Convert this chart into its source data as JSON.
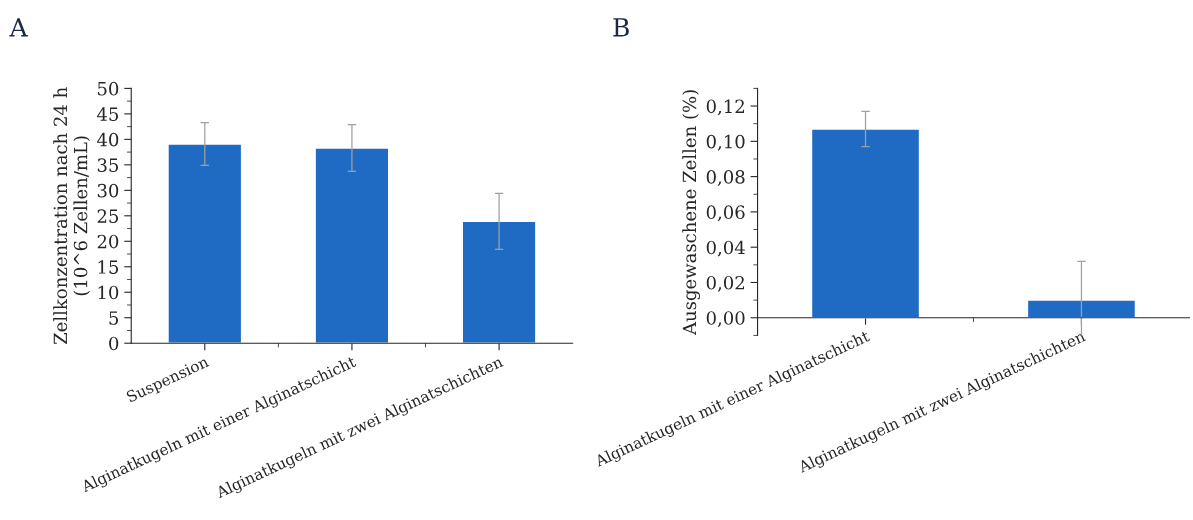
{
  "chart_data": [
    {
      "type": "bar",
      "annotations": [
        "A"
      ],
      "ylabel": "Zellkonzentration nach 24 h\n(10^6 Zellen/mL)",
      "categories": [
        "Suspension",
        "Alginatkugeln mit einer Alginatschicht",
        "Alginatkugeln mit zwei Alginatschichten"
      ],
      "values": [
        39.1,
        38.3,
        23.9
      ],
      "errors": [
        4.2,
        4.6,
        5.5
      ],
      "color": "#1f6bc4",
      "ylim": [
        0,
        50
      ],
      "yticks": [
        0,
        5,
        10,
        15,
        20,
        25,
        30,
        35,
        40,
        45,
        50
      ],
      "grid": false,
      "legend": false
    },
    {
      "type": "bar",
      "annotations": [
        "B"
      ],
      "ylabel": "Ausgewaschene Zellen (%)",
      "categories": [
        "Alginatkugeln mit einer Alginatschicht",
        "Alginatkugeln mit zwei Alginatschichten"
      ],
      "values": [
        0.107,
        0.01
      ],
      "errors": [
        0.01,
        0.022
      ],
      "color": "#1f6bc4",
      "ylim": [
        -0.01,
        0.13
      ],
      "yticks": [
        {
          "value": 0,
          "label": "0,00"
        },
        {
          "value": 0.02,
          "label": "0,02"
        },
        {
          "value": 0.04,
          "label": "0,04"
        },
        {
          "value": 0.06,
          "label": "0,06"
        },
        {
          "value": 0.08,
          "label": "0,08"
        },
        {
          "value": 0.1,
          "label": "0,10"
        },
        {
          "value": 0.12,
          "label": "0,12"
        }
      ],
      "grid": false,
      "legend": false
    }
  ]
}
